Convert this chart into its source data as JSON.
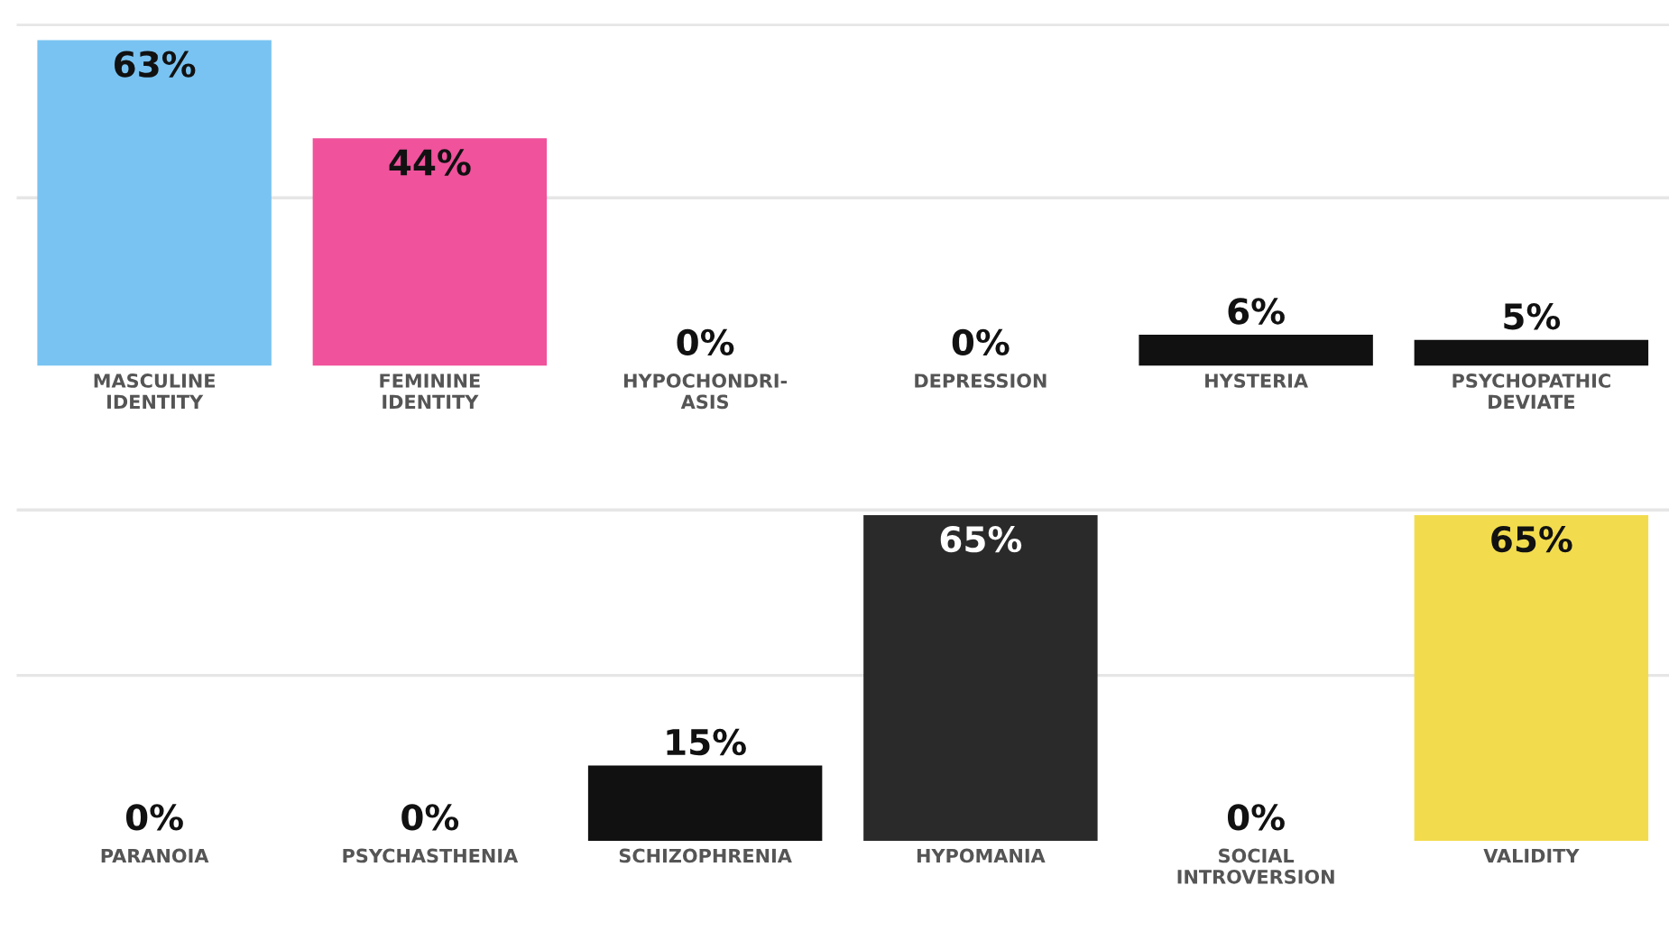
{
  "chart_data": [
    {
      "type": "bar",
      "categories": [
        "MASCULINE\nIDENTITY",
        "FEMININE\nIDENTITY",
        "HYPOCHONDRI-\nASIS",
        "DEPRESSION",
        "HYSTERIA",
        "PSYCHOPATHIC\nDEVIATE"
      ],
      "values": [
        63,
        44,
        0,
        0,
        6,
        5
      ],
      "colors": [
        "#79c3f2",
        "#f0529c",
        "#111111",
        "#111111",
        "#111111",
        "#111111"
      ],
      "value_labels": [
        "63%",
        "44%",
        "0%",
        "0%",
        "6%",
        "5%"
      ],
      "ref_lines": [
        {
          "axis": "y",
          "value": 32.5,
          "color": "#e6e6e6"
        },
        {
          "axis": "y",
          "value": 66,
          "color": "#e6e6e6"
        }
      ],
      "tick_labels": "x"
    },
    {
      "type": "bar",
      "categories": [
        "PARANOIA",
        "PSYCHASTHENIA",
        "SCHIZOPHRENIA",
        "HYPOMANIA",
        "SOCIAL\nINTROVERSION",
        "VALIDITY"
      ],
      "values": [
        0,
        0,
        15,
        65,
        0,
        65
      ],
      "colors": [
        "#111111",
        "#111111",
        "#111111",
        "#2a2a2a",
        "#111111",
        "#f2dc4e"
      ],
      "value_labels": [
        "0%",
        "0%",
        "15%",
        "65%",
        "0%",
        "65%"
      ],
      "ref_lines": [
        {
          "axis": "y",
          "value": 33,
          "color": "#e6e6e6"
        },
        {
          "axis": "y",
          "value": 66,
          "color": "#e6e6e6"
        }
      ],
      "tick_labels": "x"
    }
  ]
}
